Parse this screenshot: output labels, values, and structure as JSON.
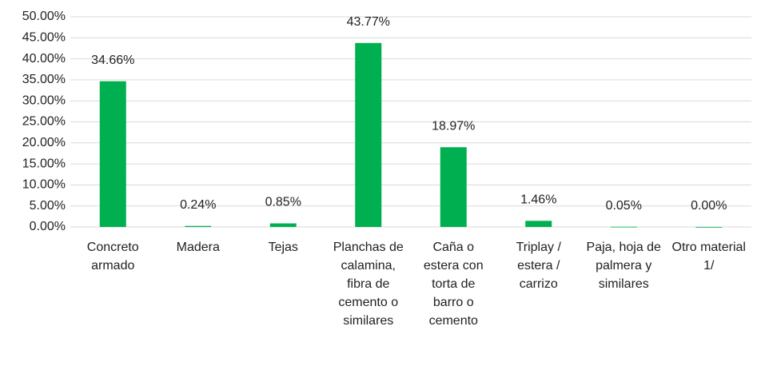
{
  "chart_data": {
    "type": "bar",
    "categories": [
      "Concreto armado",
      "Madera",
      "Tejas",
      "Planchas de calamina, fibra de cemento o similares",
      "Caña o estera con torta de barro o cemento",
      "Triplay / estera / carrizo",
      "Paja, hoja de palmera y similares",
      "Otro material 1/"
    ],
    "values": [
      34.66,
      0.24,
      0.85,
      43.77,
      18.97,
      1.46,
      0.05,
      0.0
    ],
    "value_labels": [
      "34.66%",
      "0.24%",
      "0.85%",
      "43.77%",
      "18.97%",
      "1.46%",
      "0.05%",
      "0.00%"
    ],
    "color": "#00b050",
    "ylim": [
      0,
      50
    ],
    "yticks": [
      {
        "value": 0,
        "label": "0.00%"
      },
      {
        "value": 5,
        "label": "5.00%"
      },
      {
        "value": 10,
        "label": "10.00%"
      },
      {
        "value": 15,
        "label": "15.00%"
      },
      {
        "value": 20,
        "label": "20.00%"
      },
      {
        "value": 25,
        "label": "25.00%"
      },
      {
        "value": 30,
        "label": "30.00%"
      },
      {
        "value": 35,
        "label": "35.00%"
      },
      {
        "value": 40,
        "label": "40.00%"
      },
      {
        "value": 45,
        "label": "45.00%"
      },
      {
        "value": 50,
        "label": "50.00%"
      }
    ],
    "grid": true
  }
}
